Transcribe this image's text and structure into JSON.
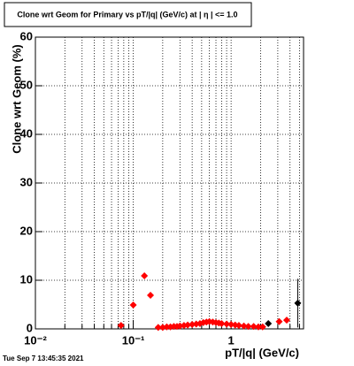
{
  "chart_data": {
    "type": "scatter",
    "title": "Clone wrt Geom for Primary vs pT/|q| (GeV/c) at |  η | <= 1.0",
    "x_label": "pT/|q| (GeV/c)",
    "y_label": "Clone wrt Geom (%)",
    "timestamp": "Tue Sep  7 13:45:35 2021",
    "log_x": true,
    "grid": true,
    "xlim": [
      0.01,
      5.5
    ],
    "ylim": [
      0,
      60
    ],
    "xticks": [
      {
        "value": 0.01,
        "label": "10⁻²"
      },
      {
        "value": 0.1,
        "label": "10⁻¹"
      },
      1
    ],
    "xminorticks": [
      0.02,
      0.03,
      0.04,
      0.05,
      0.06,
      0.07,
      0.08,
      0.09,
      0.2,
      0.3,
      0.4,
      0.5,
      0.6,
      0.7,
      0.8,
      0.9,
      2,
      3,
      4,
      5
    ],
    "yticks": [
      0,
      10,
      20,
      30,
      40,
      50,
      60
    ],
    "series": [
      {
        "color": "#000000",
        "x": [
          2.4,
          4.8
        ],
        "values": [
          1.1,
          5.3
        ],
        "errors": [
          0.5,
          5
        ]
      },
      {
        "color": "#ff0000",
        "x": [
          0.075,
          0.1,
          0.13,
          0.15,
          0.18,
          0.2,
          0.22,
          0.24,
          0.26,
          0.28,
          0.3,
          0.33,
          0.36,
          0.4,
          0.44,
          0.48,
          0.52,
          0.56,
          0.6,
          0.65,
          0.7,
          0.75,
          0.8,
          0.9,
          1.0,
          1.1,
          1.2,
          1.35,
          1.5,
          1.7,
          1.9,
          2.1,
          3.1,
          3.7
        ],
        "values": [
          0.7,
          4.9,
          10.9,
          6.9,
          0.3,
          0.3,
          0.4,
          0.4,
          0.5,
          0.5,
          0.6,
          0.7,
          0.8,
          0.9,
          1.0,
          1.1,
          1.3,
          1.4,
          1.5,
          1.4,
          1.3,
          1.2,
          1.1,
          1.0,
          0.9,
          0.8,
          0.7,
          0.6,
          0.5,
          0.5,
          0.4,
          0.4,
          1.5,
          1.8
        ]
      }
    ]
  }
}
